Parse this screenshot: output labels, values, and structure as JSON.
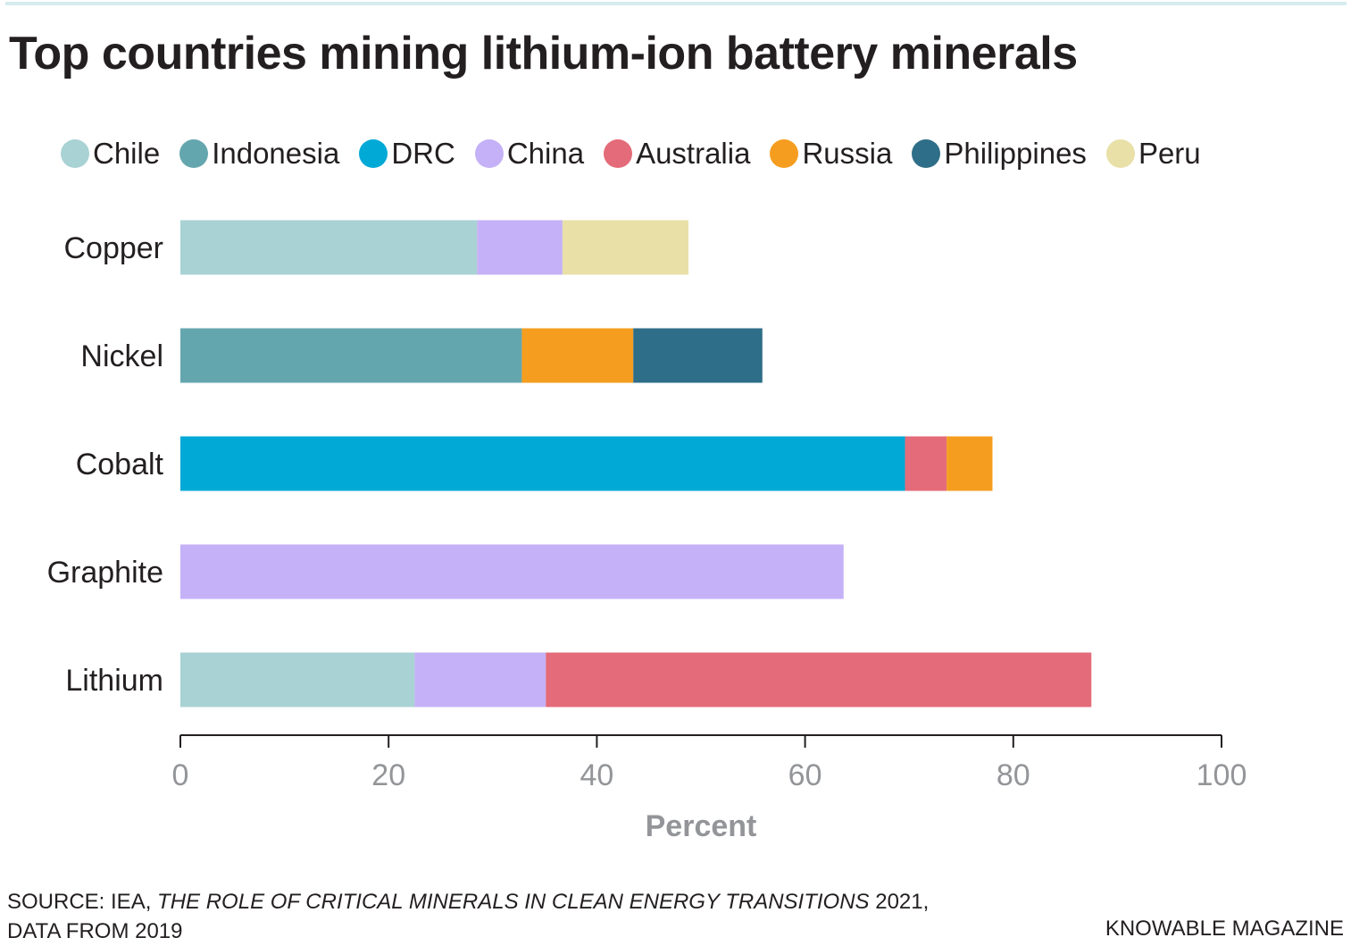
{
  "title": "Top countries mining lithium-ion battery minerals",
  "source": {
    "prefix": "SOURCE: IEA, ",
    "publication": "THE ROLE OF CRITICAL MINERALS IN CLEAN ENERGY TRANSITIONS",
    "suffix": " 2021,",
    "line2": "DATA FROM 2019"
  },
  "credit": "KNOWABLE MAGAZINE",
  "chart_data": {
    "type": "bar",
    "orientation": "horizontal",
    "stacked": true,
    "title": "Top countries mining lithium-ion battery minerals",
    "xlabel": "Percent",
    "ylabel": "",
    "xlim": [
      0,
      100
    ],
    "xticks": [
      0,
      20,
      40,
      60,
      80,
      100
    ],
    "grid": false,
    "legend_position": "top",
    "categories": [
      "Copper",
      "Nickel",
      "Cobalt",
      "Graphite",
      "Lithium"
    ],
    "series": [
      {
        "name": "Chile",
        "color": "#a9d2d4",
        "values": [
          28.5,
          0,
          0,
          0,
          22.5
        ]
      },
      {
        "name": "Indonesia",
        "color": "#64a6ae",
        "values": [
          0,
          32.8,
          0,
          0,
          0
        ]
      },
      {
        "name": "DRC",
        "color": "#00a9d6",
        "values": [
          0,
          0,
          69.6,
          0,
          0
        ]
      },
      {
        "name": "China",
        "color": "#c5b1f7",
        "values": [
          8.2,
          0,
          0,
          63.7,
          12.6
        ]
      },
      {
        "name": "Australia",
        "color": "#e46b79",
        "values": [
          0,
          0,
          4.0,
          0,
          52.4
        ]
      },
      {
        "name": "Russia",
        "color": "#f59d1f",
        "values": [
          0,
          10.7,
          4.4,
          0,
          0
        ]
      },
      {
        "name": "Philippines",
        "color": "#2f6e88",
        "values": [
          0,
          12.4,
          0,
          0,
          0
        ]
      },
      {
        "name": "Peru",
        "color": "#e9e0a8",
        "values": [
          12.1,
          0,
          0,
          0,
          0
        ]
      }
    ],
    "stack_order": [
      [
        "Chile",
        "China",
        "Peru"
      ],
      [
        "Indonesia",
        "Russia",
        "Philippines"
      ],
      [
        "DRC",
        "Australia",
        "Russia"
      ],
      [
        "China"
      ],
      [
        "Chile",
        "China",
        "Australia"
      ]
    ]
  }
}
